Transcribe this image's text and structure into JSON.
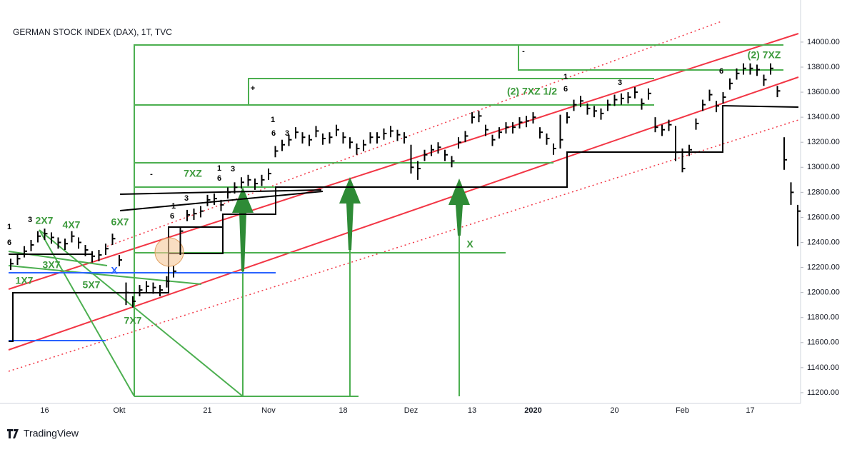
{
  "chart_data": {
    "type": "ohlc",
    "title": "GERMAN STOCK INDEX (DAX), 1T, TVC",
    "color": "#000000",
    "categories": [
      null,
      null,
      null,
      null,
      null,
      "16",
      null,
      null,
      null,
      null,
      null,
      null,
      null,
      null,
      null,
      null,
      "Okt",
      null,
      null,
      null,
      null,
      null,
      null,
      null,
      null,
      null,
      null,
      null,
      null,
      "21",
      null,
      null,
      null,
      null,
      null,
      null,
      null,
      null,
      "Nov",
      null,
      null,
      null,
      null,
      null,
      null,
      null,
      null,
      null,
      null,
      "18",
      null,
      null,
      null,
      null,
      null,
      null,
      null,
      null,
      null,
      "Dez",
      null,
      null,
      null,
      null,
      null,
      null,
      null,
      null,
      "13",
      null,
      null,
      null,
      null,
      null,
      null,
      null,
      null,
      "2020",
      null,
      null,
      null,
      null,
      null,
      null,
      null,
      null,
      null,
      null,
      null,
      "20",
      null,
      null,
      null,
      null,
      null,
      null,
      null,
      null,
      null,
      "Feb",
      null,
      null,
      null,
      null,
      null,
      null,
      null,
      null,
      null,
      "17",
      null,
      null,
      null,
      null,
      null,
      null,
      null
    ],
    "high": [
      12270,
      12310,
      12370,
      12420,
      12490,
      12510,
      12480,
      12440,
      12430,
      12490,
      12440,
      12380,
      12330,
      12340,
      12390,
      12470,
      12300,
      12080,
      11970,
      12060,
      12090,
      12080,
      12060,
      12130,
      12210,
      12520,
      12660,
      12670,
      12690,
      12780,
      12790,
      12740,
      12840,
      12880,
      12920,
      12940,
      12910,
      12940,
      12990,
      13170,
      13220,
      13260,
      13320,
      13280,
      13260,
      13330,
      13270,
      13280,
      13340,
      13280,
      13240,
      13190,
      13220,
      13280,
      13280,
      13310,
      13330,
      13300,
      13280,
      13180,
      13050,
      13140,
      13180,
      13200,
      13140,
      13090,
      13240,
      13290,
      13440,
      13450,
      13340,
      13260,
      13320,
      13360,
      13360,
      13400,
      13410,
      13440,
      13320,
      13270,
      13190,
      13420,
      13440,
      13540,
      13570,
      13510,
      13490,
      13470,
      13540,
      13580,
      13590,
      13600,
      13640,
      13550,
      13630,
      13400,
      13340,
      13380,
      13330,
      13150,
      13180,
      13390,
      13540,
      13620,
      13530,
      13600,
      13710,
      13790,
      13830,
      13830,
      13820,
      13740,
      13830,
      13650,
      13240,
      12880,
      12700
    ],
    "low": [
      12180,
      12220,
      12280,
      12330,
      12400,
      12420,
      12390,
      12350,
      12340,
      12400,
      12350,
      12290,
      12240,
      12250,
      12300,
      12380,
      12210,
      11900,
      11880,
      11970,
      12000,
      11990,
      11970,
      12040,
      12120,
      12300,
      12570,
      12580,
      12600,
      12690,
      12700,
      12650,
      12750,
      12790,
      12830,
      12850,
      12820,
      12850,
      12900,
      13080,
      13130,
      13170,
      13230,
      13190,
      13170,
      13240,
      13180,
      13190,
      13250,
      13190,
      13150,
      13100,
      13130,
      13190,
      13190,
      13220,
      13240,
      13210,
      13190,
      12950,
      12900,
      13050,
      13090,
      13110,
      13050,
      13000,
      13150,
      13200,
      13350,
      13360,
      13250,
      13170,
      13230,
      13270,
      13270,
      13310,
      13320,
      13350,
      13230,
      13180,
      13100,
      13150,
      13350,
      13450,
      13480,
      13420,
      13400,
      13380,
      13450,
      13490,
      13500,
      13510,
      13550,
      13460,
      13540,
      13280,
      13250,
      13290,
      13050,
      12960,
      13090,
      13300,
      13450,
      13530,
      13440,
      13510,
      13620,
      13700,
      13740,
      13740,
      13730,
      13650,
      13740,
      13560,
      12980,
      12700,
      12370
    ],
    "close": [
      12230,
      12270,
      12330,
      12380,
      12450,
      12470,
      12440,
      12400,
      12390,
      12450,
      12400,
      12340,
      12290,
      12300,
      12350,
      12430,
      12260,
      12000,
      11930,
      12020,
      12050,
      12040,
      12020,
      12090,
      12170,
      12490,
      12620,
      12630,
      12650,
      12740,
      12750,
      12700,
      12800,
      12840,
      12880,
      12900,
      12870,
      12900,
      12950,
      13130,
      13180,
      13220,
      13280,
      13240,
      13220,
      13290,
      13230,
      13240,
      13300,
      13240,
      13200,
      13150,
      13180,
      13240,
      13240,
      13270,
      13290,
      13260,
      13240,
      13000,
      12990,
      13100,
      13140,
      13160,
      13100,
      13050,
      13200,
      13250,
      13400,
      13410,
      13300,
      13220,
      13280,
      13320,
      13320,
      13360,
      13370,
      13400,
      13280,
      13230,
      13150,
      13220,
      13400,
      13500,
      13530,
      13470,
      13450,
      13430,
      13500,
      13540,
      13550,
      13560,
      13600,
      13510,
      13590,
      13320,
      13300,
      13340,
      13120,
      12990,
      13140,
      13350,
      13500,
      13580,
      13490,
      13560,
      13670,
      13750,
      13790,
      13790,
      13780,
      13700,
      13790,
      13610,
      13060,
      12800,
      12650
    ],
    "ylim": [
      11114,
      14165
    ],
    "yticks": [
      {
        "value": 11200,
        "label": "11200.00"
      },
      {
        "value": 11400,
        "label": "11400.00"
      },
      {
        "value": 11600,
        "label": "11600.00"
      },
      {
        "value": 11800,
        "label": "11800.00"
      },
      {
        "value": 12000,
        "label": "12000.00"
      },
      {
        "value": 12200,
        "label": "12200.00"
      },
      {
        "value": 12400,
        "label": "12400.00"
      },
      {
        "value": 12600,
        "label": "12600.00"
      },
      {
        "value": 12800,
        "label": "12800.00"
      },
      {
        "value": 13000,
        "label": "13000.00"
      },
      {
        "value": 13200,
        "label": "13200.00"
      },
      {
        "value": 13400,
        "label": "13400.00"
      },
      {
        "value": 13600,
        "label": "13600.00"
      },
      {
        "value": 13800,
        "label": "13800.00"
      },
      {
        "value": 14000,
        "label": "14000.00"
      }
    ],
    "annotations": [
      {
        "text": "2X7",
        "color": "#3c9a3c"
      },
      {
        "text": "4X7",
        "color": "#3c9a3c"
      },
      {
        "text": "6X7",
        "color": "#3c9a3c"
      },
      {
        "text": "3X7",
        "color": "#3c9a3c"
      },
      {
        "text": "1X7",
        "color": "#3c9a3c"
      },
      {
        "text": "5X7",
        "color": "#3c9a3c"
      },
      {
        "text": "7X7",
        "color": "#3c9a3c"
      },
      {
        "text": "7XZ",
        "color": "#3c9a3c"
      },
      {
        "text": "(2) 7XZ 1/2",
        "color": "#3c9a3c"
      },
      {
        "text": "(2) 7XZ",
        "color": "#3c9a3c"
      },
      {
        "text": "X",
        "color": "#2962ff"
      },
      {
        "text": "X",
        "color": "#3c9a3c"
      },
      {
        "text": "1",
        "color": "#000000"
      },
      {
        "text": "6",
        "color": "#000000"
      },
      {
        "text": "3",
        "color": "#000000"
      },
      {
        "text": "1",
        "color": "#000000"
      },
      {
        "text": "6",
        "color": "#000000"
      },
      {
        "text": "3",
        "color": "#000000"
      },
      {
        "text": "1",
        "color": "#000000"
      },
      {
        "text": "6",
        "color": "#000000"
      },
      {
        "text": "3",
        "color": "#000000"
      },
      {
        "text": "1",
        "color": "#000000"
      },
      {
        "text": "6",
        "color": "#000000"
      },
      {
        "text": "3",
        "color": "#000000"
      },
      {
        "text": "1",
        "color": "#000000"
      },
      {
        "text": "6",
        "color": "#000000"
      },
      {
        "text": "3",
        "color": "#000000"
      },
      {
        "text": "6",
        "color": "#000000"
      },
      {
        "text": "-",
        "color": "#000000"
      },
      {
        "text": "+",
        "color": "#000000"
      },
      {
        "text": "-",
        "color": "#000000"
      }
    ]
  },
  "footer": {
    "brand": "TradingView"
  }
}
